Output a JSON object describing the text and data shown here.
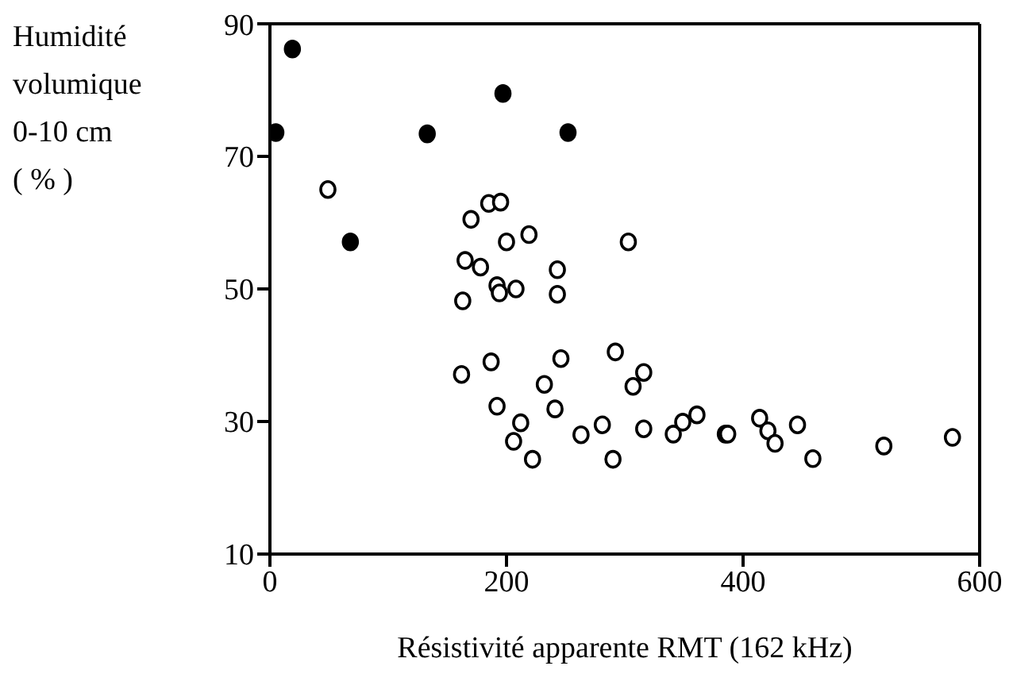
{
  "chart_data": {
    "type": "scatter",
    "xlabel": "Résistivité apparente RMT (162 kHz)",
    "ylabel": "Humidité\nvolumique\n0-10 cm\n( % )",
    "xlim": [
      0,
      600
    ],
    "xticks": [
      0,
      200,
      400,
      600
    ],
    "ylim": [
      10,
      90
    ],
    "yticks": [
      10,
      30,
      50,
      70,
      90
    ],
    "marker": "circle",
    "series": [
      {
        "color": "#000000",
        "x": [
          19,
          5,
          133,
          197,
          252,
          68
        ],
        "values": [
          86.2,
          73.6,
          73.4,
          79.5,
          73.6,
          57.1
        ]
      },
      {
        "color": "#ffffff",
        "x": [
          49,
          185,
          195,
          170,
          200,
          219,
          303,
          165,
          178,
          243,
          192,
          194,
          208,
          243,
          163,
          187,
          162,
          246,
          292,
          232,
          307,
          192,
          241,
          212,
          206,
          263,
          281,
          222,
          290,
          316,
          316,
          341,
          349,
          361,
          385,
          387,
          414,
          421,
          427,
          446,
          459,
          519,
          577
        ],
        "values": [
          65,
          62.9,
          63.1,
          60.5,
          57.1,
          58.2,
          57.1,
          54.3,
          53.3,
          52.9,
          50.5,
          49.4,
          50,
          49.2,
          48.2,
          39,
          37.1,
          39.5,
          40.5,
          35.6,
          35.3,
          32.3,
          31.9,
          29.8,
          27,
          28,
          29.5,
          24.3,
          24.3,
          37.4,
          28.9,
          28.1,
          29.9,
          31,
          28.1,
          28.1,
          30.5,
          28.6,
          26.7,
          29.5,
          24.4,
          26.3,
          27.6
        ]
      }
    ]
  }
}
